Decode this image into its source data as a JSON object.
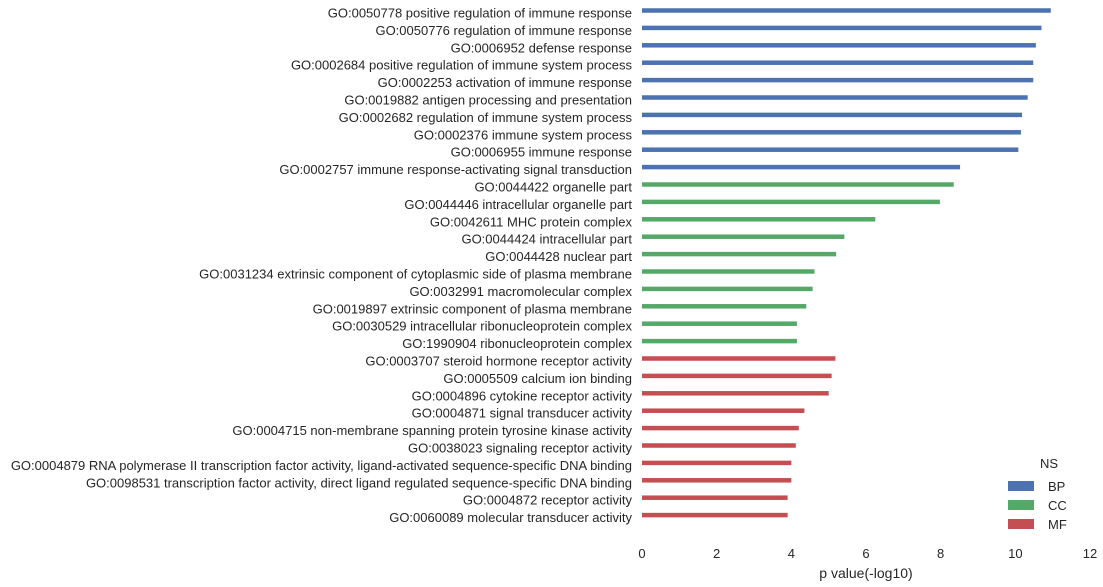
{
  "chart_data": {
    "type": "bar",
    "orientation": "horizontal",
    "title": "",
    "xlabel": "p value(-log10)",
    "ylabel": "",
    "xlim": [
      0,
      12
    ],
    "xticks": [
      0,
      2,
      4,
      6,
      8,
      10,
      12
    ],
    "grid": false,
    "legend": {
      "title": "NS",
      "position": "bottom-right",
      "entries": [
        {
          "name": "BP",
          "color": "#4c72b0"
        },
        {
          "name": "CC",
          "color": "#55a868"
        },
        {
          "name": "MF",
          "color": "#c44e52"
        }
      ]
    },
    "series": [
      {
        "name": "BP",
        "color": "#4c72b0"
      },
      {
        "name": "CC",
        "color": "#55a868"
      },
      {
        "name": "MF",
        "color": "#c44e52"
      }
    ],
    "bars": [
      {
        "label": "GO:0050778 positive regulation of immune response",
        "ns": "BP",
        "value": 10.95
      },
      {
        "label": "GO:0050776 regulation of immune response",
        "ns": "BP",
        "value": 10.7
      },
      {
        "label": "GO:0006952 defense response",
        "ns": "BP",
        "value": 10.55
      },
      {
        "label": "GO:0002684 positive regulation of immune system process",
        "ns": "BP",
        "value": 10.48
      },
      {
        "label": "GO:0002253 activation of immune response",
        "ns": "BP",
        "value": 10.48
      },
      {
        "label": "GO:0019882 antigen processing and presentation",
        "ns": "BP",
        "value": 10.33
      },
      {
        "label": "GO:0002682 regulation of immune system process",
        "ns": "BP",
        "value": 10.18
      },
      {
        "label": "GO:0002376 immune system process",
        "ns": "BP",
        "value": 10.15
      },
      {
        "label": "GO:0006955 immune response",
        "ns": "BP",
        "value": 10.08
      },
      {
        "label": "GO:0002757 immune response-activating signal transduction",
        "ns": "BP",
        "value": 8.52
      },
      {
        "label": "GO:0044422 organelle part",
        "ns": "CC",
        "value": 8.35
      },
      {
        "label": "GO:0044446 intracellular organelle part",
        "ns": "CC",
        "value": 7.98
      },
      {
        "label": "GO:0042611 MHC protein complex",
        "ns": "CC",
        "value": 6.25
      },
      {
        "label": "GO:0044424 intracellular part",
        "ns": "CC",
        "value": 5.42
      },
      {
        "label": "GO:0044428 nuclear part",
        "ns": "CC",
        "value": 5.2
      },
      {
        "label": "GO:0031234 extrinsic component of cytoplasmic side of plasma membrane",
        "ns": "CC",
        "value": 4.62
      },
      {
        "label": "GO:0032991 macromolecular complex",
        "ns": "CC",
        "value": 4.57
      },
      {
        "label": "GO:0019897 extrinsic component of plasma membrane",
        "ns": "CC",
        "value": 4.4
      },
      {
        "label": "GO:0030529 intracellular ribonucleoprotein complex",
        "ns": "CC",
        "value": 4.15
      },
      {
        "label": "GO:1990904 ribonucleoprotein complex",
        "ns": "CC",
        "value": 4.15
      },
      {
        "label": "GO:0003707 steroid hormone receptor activity",
        "ns": "MF",
        "value": 5.18
      },
      {
        "label": "GO:0005509 calcium ion binding",
        "ns": "MF",
        "value": 5.08
      },
      {
        "label": "GO:0004896 cytokine receptor activity",
        "ns": "MF",
        "value": 5.0
      },
      {
        "label": "GO:0004871 signal transducer activity",
        "ns": "MF",
        "value": 4.35
      },
      {
        "label": "GO:0004715 non-membrane spanning protein tyrosine kinase activity",
        "ns": "MF",
        "value": 4.2
      },
      {
        "label": "GO:0038023 signaling receptor activity",
        "ns": "MF",
        "value": 4.12
      },
      {
        "label": "GO:0004879 RNA polymerase II transcription factor activity, ligand-activated sequence-specific DNA binding",
        "ns": "MF",
        "value": 4.0
      },
      {
        "label": "GO:0098531 transcription factor activity, direct ligand regulated sequence-specific DNA binding",
        "ns": "MF",
        "value": 4.0
      },
      {
        "label": "GO:0004872 receptor activity",
        "ns": "MF",
        "value": 3.9
      },
      {
        "label": "GO:0060089 molecular transducer activity",
        "ns": "MF",
        "value": 3.9
      }
    ]
  }
}
